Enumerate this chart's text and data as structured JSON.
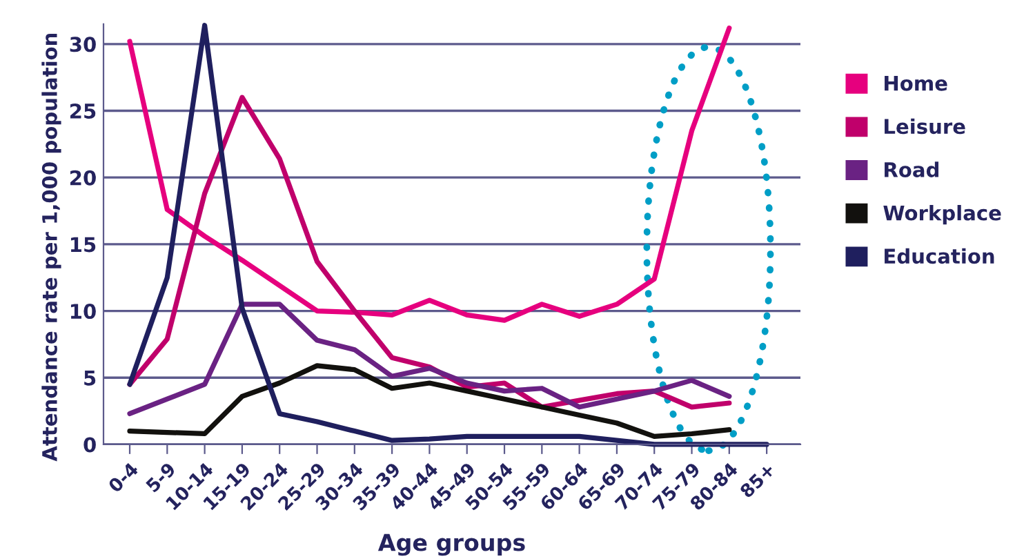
{
  "chart_data": {
    "type": "line",
    "xlabel": "Age groups",
    "ylabel": "Attendance rate per 1,000 population",
    "categories": [
      "0-4",
      "5-9",
      "10-14",
      "15-19",
      "20-24",
      "25-29",
      "30-34",
      "35-39",
      "40-44",
      "45-49",
      "50-54",
      "55-59",
      "60-64",
      "65-69",
      "70-74",
      "75-79",
      "80-84",
      "85+"
    ],
    "series": [
      {
        "name": "Home",
        "color": "#e6007e",
        "values": [
          30.2,
          17.6,
          15.6,
          13.8,
          11.9,
          10.0,
          9.9,
          9.7,
          10.8,
          9.7,
          9.3,
          10.5,
          9.6,
          10.5,
          12.4,
          23.5,
          31.2,
          null
        ]
      },
      {
        "name": "Leisure",
        "color": "#c0006b",
        "values": [
          4.5,
          7.9,
          18.8,
          26.0,
          21.4,
          13.7,
          10.0,
          6.5,
          5.8,
          4.3,
          4.6,
          2.8,
          3.3,
          3.8,
          4.0,
          2.8,
          3.1,
          null
        ]
      },
      {
        "name": "Road",
        "color": "#6a2283",
        "values": [
          2.3,
          3.4,
          4.5,
          10.5,
          10.5,
          7.8,
          7.1,
          5.1,
          5.7,
          4.6,
          4.0,
          4.2,
          2.8,
          3.4,
          4.0,
          4.8,
          3.6,
          null
        ]
      },
      {
        "name": "Workplace",
        "color": "#12110e",
        "values": [
          1.0,
          0.9,
          0.8,
          3.6,
          4.6,
          5.9,
          5.6,
          4.2,
          4.6,
          4.0,
          3.4,
          2.8,
          2.2,
          1.6,
          0.6,
          0.8,
          1.1,
          null
        ]
      },
      {
        "name": "Education",
        "color": "#1f1f5e",
        "values": [
          4.5,
          12.5,
          31.4,
          10.2,
          2.3,
          1.7,
          1.0,
          0.3,
          0.4,
          0.6,
          0.6,
          0.6,
          0.6,
          0.3,
          0.0,
          0.0,
          0.0,
          0.0
        ]
      }
    ],
    "ylim": [
      0,
      31.5
    ],
    "yticks": [
      0,
      5,
      10,
      15,
      20,
      25,
      30
    ],
    "grid": "y",
    "legend": "right",
    "marker": "none",
    "line_style": "solid"
  }
}
